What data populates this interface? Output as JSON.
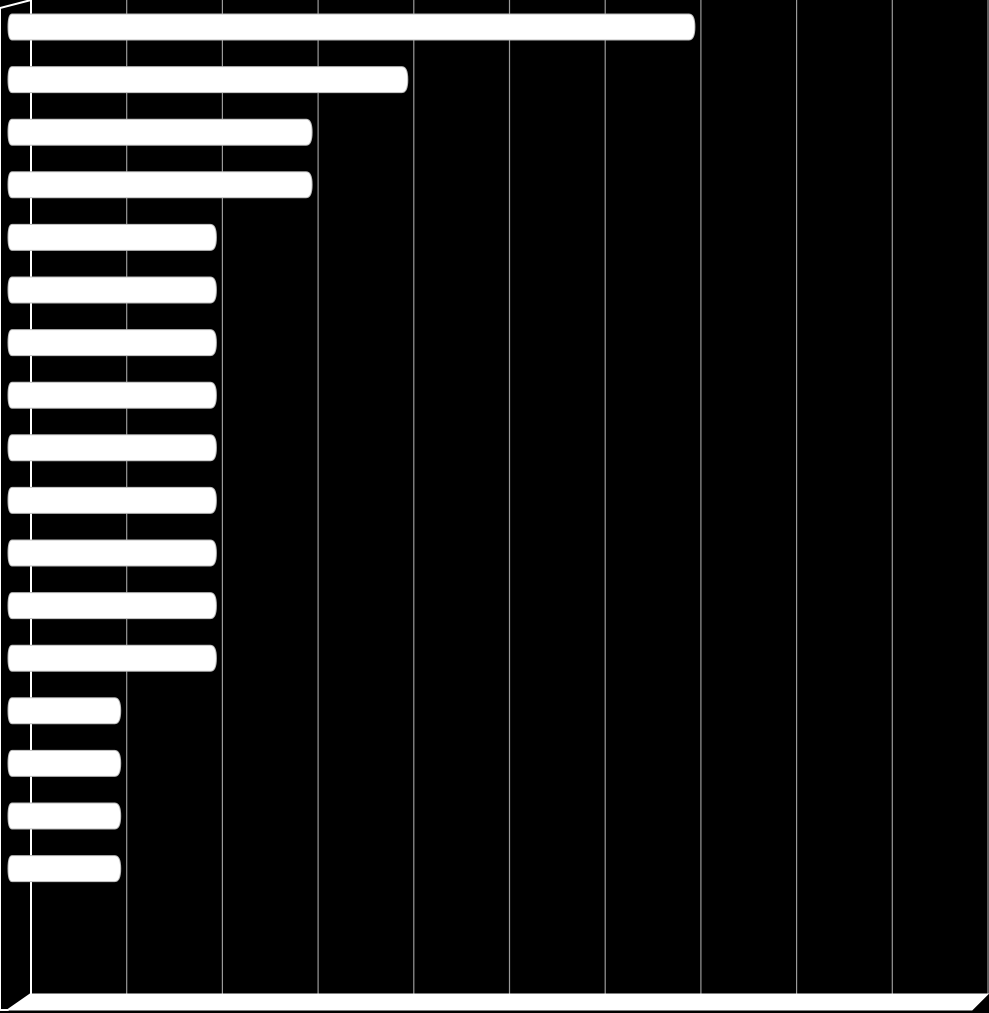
{
  "chart_data": {
    "type": "bar",
    "horizontal": true,
    "values": [
      7,
      4,
      3,
      3,
      2,
      2,
      2,
      2,
      2,
      2,
      2,
      2,
      2,
      1,
      1,
      1,
      1
    ],
    "color": "#ffffff",
    "background": "#000000",
    "grid": true,
    "grid_color": "#9a9a9a",
    "xlim": [
      0,
      10
    ],
    "xticks": [
      0,
      1,
      2,
      3,
      4,
      5,
      6,
      7,
      8,
      9,
      10
    ]
  }
}
